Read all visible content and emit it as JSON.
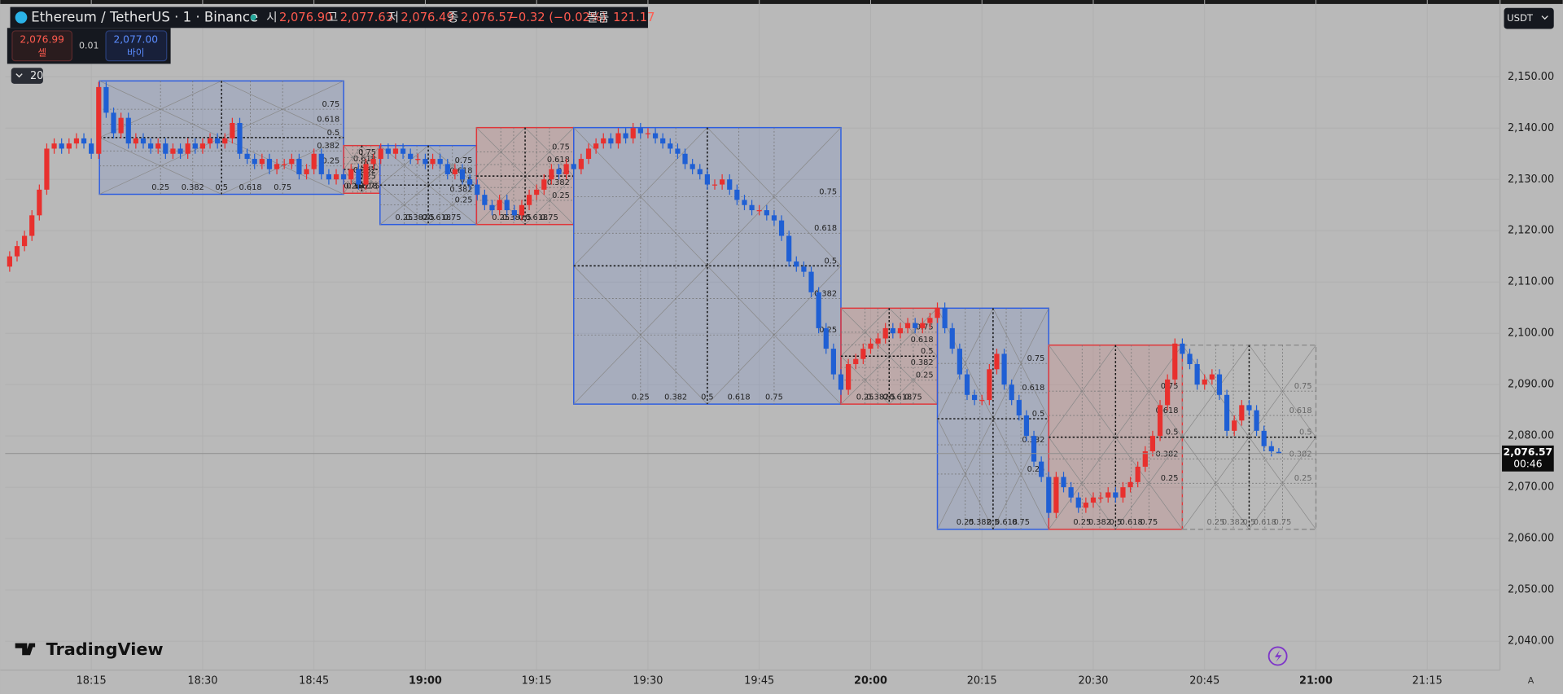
{
  "header": {
    "title": "Ethereum / TetherUS · 1 · Binance",
    "open_label": "시",
    "open": "2,076.90",
    "high_label": "고",
    "high": "2,077.63",
    "low_label": "저",
    "low": "2,076.49",
    "close_label": "종",
    "close": "2,076.57",
    "change": "−0.32 (−0.02%)",
    "volume_label": "볼륨",
    "volume": "121.17",
    "sell_price": "2,076.99",
    "sell": "셀",
    "spread": "0.01",
    "buy_price": "2,077.00",
    "buy": "바이",
    "indicator_count": "20",
    "currency": "USDT",
    "logo": "TradingView",
    "auto": "A"
  },
  "chart_data": {
    "type": "candlestick",
    "up_color": "#e8302e",
    "down_color": "#1f5fd4",
    "grid": true,
    "xlim": [
      -0.6,
      200.8
    ],
    "xticks": [
      {
        "value": 11,
        "label": "18:15"
      },
      {
        "value": 26,
        "label": "18:30"
      },
      {
        "value": 41,
        "label": "18:45"
      },
      {
        "value": 56,
        "label": "19:00"
      },
      {
        "value": 71,
        "label": "19:15"
      },
      {
        "value": 86,
        "label": "19:30"
      },
      {
        "value": 101,
        "label": "19:45"
      },
      {
        "value": 116,
        "label": "20:00"
      },
      {
        "value": 131,
        "label": "20:15"
      },
      {
        "value": 146,
        "label": "20:30"
      },
      {
        "value": 161,
        "label": "20:45"
      },
      {
        "value": 176,
        "label": "21:00"
      },
      {
        "value": 191,
        "label": "21:15"
      }
    ],
    "bold_xticks": [
      3,
      7,
      11
    ],
    "ylim": [
      2034.36,
      2164.97
    ],
    "yticks": [
      {
        "value": 2040,
        "label": "2,040.00"
      },
      {
        "value": 2050,
        "label": "2,050.00"
      },
      {
        "value": 2060,
        "label": "2,060.00"
      },
      {
        "value": 2070,
        "label": "2,070.00"
      },
      {
        "value": 2080,
        "label": "2,080.00"
      },
      {
        "value": 2090,
        "label": "2,090.00"
      },
      {
        "value": 2100,
        "label": "2,100.00"
      },
      {
        "value": 2110,
        "label": "2,110.00"
      },
      {
        "value": 2120,
        "label": "2,120.00"
      },
      {
        "value": 2130,
        "label": "2,130.00"
      },
      {
        "value": 2140,
        "label": "2,140.00"
      },
      {
        "value": 2150,
        "label": "2,150.00"
      }
    ],
    "open": [
      2113,
      2115,
      2117,
      2119,
      2123,
      2128,
      2136,
      2137,
      2136,
      2137,
      2138,
      2137,
      2135,
      2148,
      2143,
      2139,
      2142,
      2137,
      2138,
      2137,
      2136,
      2137,
      2135,
      2136,
      2135,
      2137,
      2136,
      2137,
      2138,
      2137,
      2138,
      2141,
      2135,
      2134,
      2133,
      2134,
      2132,
      2133,
      2133,
      2134,
      2131,
      2132,
      2135,
      2131,
      2130,
      2131,
      2130,
      2132,
      2129,
      2133,
      2134,
      2136,
      2135,
      2136,
      2135,
      2134,
      2134,
      2133,
      2134,
      2133,
      2131,
      2132,
      2130,
      2129,
      2127,
      2125,
      2124,
      2126,
      2124,
      2123,
      2125,
      2127,
      2128,
      2130,
      2132,
      2131,
      2133,
      2132,
      2134,
      2136,
      2137,
      2138,
      2137,
      2139,
      2138,
      2140,
      2139,
      2139,
      2138,
      2137,
      2136,
      2135,
      2133,
      2132,
      2131,
      2129,
      2129,
      2130,
      2128,
      2126,
      2125,
      2124,
      2124,
      2123,
      2122,
      2119,
      2114,
      2113,
      2112,
      2108,
      2101,
      2097,
      2092,
      2089,
      2094,
      2095,
      2097,
      2098,
      2099,
      2101,
      2100,
      2101,
      2102,
      2101,
      2102,
      2103,
      2105,
      2101,
      2097,
      2092,
      2088,
      2087,
      2087,
      2093,
      2096,
      2090,
      2087,
      2084,
      2080,
      2075,
      2072,
      2065,
      2072,
      2070,
      2068,
      2066,
      2067,
      2068,
      2068,
      2069,
      2068,
      2070,
      2071,
      2074,
      2077,
      2080,
      2086,
      2091,
      2098,
      2096,
      2094,
      2090,
      2091,
      2092,
      2088,
      2081,
      2083,
      2086,
      2085,
      2081,
      2078,
      2076.9
    ],
    "high": [
      2116,
      2118,
      2120,
      2124,
      2129,
      2137,
      2138,
      2138,
      2138,
      2139,
      2139,
      2138,
      2149,
      2149,
      2144,
      2143,
      2143,
      2139,
      2139,
      2138,
      2138,
      2138,
      2137,
      2137,
      2138,
      2138,
      2138,
      2139,
      2139,
      2139,
      2142,
      2142,
      2136,
      2135,
      2135,
      2135,
      2134,
      2134,
      2135,
      2135,
      2133,
      2136,
      2136,
      2132,
      2132,
      2132,
      2133,
      2133,
      2134,
      2135,
      2137,
      2137,
      2137,
      2137,
      2136,
      2135,
      2135,
      2135,
      2135,
      2134,
      2133,
      2133,
      2131,
      2130,
      2128,
      2126,
      2127,
      2127,
      2125,
      2126,
      2128,
      2129,
      2131,
      2133,
      2133,
      2134,
      2134,
      2135,
      2137,
      2138,
      2139,
      2139,
      2140,
      2140,
      2141,
      2141,
      2140,
      2140,
      2139,
      2138,
      2137,
      2136,
      2134,
      2133,
      2132,
      2130,
      2131,
      2131,
      2129,
      2127,
      2126,
      2125,
      2125,
      2124,
      2123,
      2120,
      2115,
      2114,
      2113,
      2109,
      2102,
      2098,
      2093,
      2095,
      2096,
      2098,
      2099,
      2100,
      2102,
      2102,
      2102,
      2103,
      2103,
      2103,
      2104,
      2106,
      2106,
      2102,
      2098,
      2093,
      2089,
      2088,
      2094,
      2097,
      2097,
      2091,
      2088,
      2085,
      2081,
      2076,
      2073,
      2073,
      2073,
      2071,
      2069,
      2068,
      2069,
      2069,
      2070,
      2070,
      2071,
      2072,
      2075,
      2078,
      2081,
      2087,
      2092,
      2099,
      2099,
      2097,
      2095,
      2092,
      2093,
      2093,
      2089,
      2084,
      2087,
      2087,
      2086,
      2082,
      2079,
      2077.63
    ],
    "low": [
      2112,
      2114,
      2116,
      2118,
      2122,
      2127,
      2135,
      2135,
      2135,
      2136,
      2136,
      2134,
      2134,
      2142,
      2138,
      2138,
      2136,
      2136,
      2136,
      2135,
      2135,
      2134,
      2134,
      2134,
      2134,
      2135,
      2135,
      2136,
      2136,
      2136,
      2137,
      2134,
      2133,
      2132,
      2132,
      2131,
      2131,
      2132,
      2132,
      2130,
      2130,
      2131,
      2130,
      2129,
      2129,
      2129,
      2129,
      2128,
      2128,
      2132,
      2133,
      2134,
      2134,
      2134,
      2133,
      2133,
      2132,
      2132,
      2132,
      2130,
      2130,
      2129,
      2128,
      2126,
      2124,
      2123,
      2123,
      2123,
      2122,
      2122,
      2124,
      2126,
      2127,
      2129,
      2130,
      2130,
      2131,
      2131,
      2133,
      2135,
      2136,
      2136,
      2136,
      2137,
      2137,
      2138,
      2138,
      2137,
      2136,
      2135,
      2134,
      2132,
      2131,
      2130,
      2128,
      2128,
      2128,
      2127,
      2125,
      2124,
      2123,
      2123,
      2122,
      2121,
      2118,
      2113,
      2112,
      2111,
      2107,
      2100,
      2096,
      2091,
      2088,
      2088,
      2093,
      2094,
      2096,
      2097,
      2098,
      2099,
      2099,
      2100,
      2100,
      2100,
      2101,
      2102,
      2100,
      2096,
      2091,
      2087,
      2086,
      2086,
      2086,
      2092,
      2089,
      2086,
      2083,
      2079,
      2074,
      2071,
      2064,
      2064,
      2069,
      2067,
      2065,
      2065,
      2066,
      2067,
      2067,
      2067,
      2067,
      2069,
      2070,
      2073,
      2076,
      2079,
      2085,
      2090,
      2095,
      2093,
      2089,
      2089,
      2090,
      2087,
      2080,
      2080,
      2082,
      2084,
      2080,
      2077,
      2076,
      2076.49
    ],
    "close": [
      2115,
      2117,
      2119,
      2123,
      2128,
      2136,
      2137,
      2136,
      2137,
      2138,
      2137,
      2135,
      2148,
      2143,
      2139,
      2142,
      2137,
      2138,
      2137,
      2136,
      2137,
      2135,
      2136,
      2135,
      2137,
      2136,
      2137,
      2138,
      2137,
      2138,
      2141,
      2135,
      2134,
      2133,
      2134,
      2132,
      2133,
      2133,
      2134,
      2131,
      2132,
      2135,
      2131,
      2130,
      2131,
      2130,
      2132,
      2129,
      2133,
      2134,
      2136,
      2135,
      2136,
      2135,
      2134,
      2134,
      2133,
      2134,
      2133,
      2131,
      2132,
      2130,
      2129,
      2127,
      2125,
      2124,
      2126,
      2124,
      2123,
      2125,
      2127,
      2128,
      2130,
      2132,
      2131,
      2133,
      2132,
      2134,
      2136,
      2137,
      2138,
      2137,
      2139,
      2138,
      2140,
      2139,
      2139,
      2138,
      2137,
      2136,
      2135,
      2133,
      2132,
      2131,
      2129,
      2129,
      2130,
      2128,
      2126,
      2125,
      2124,
      2124,
      2123,
      2122,
      2119,
      2114,
      2113,
      2112,
      2108,
      2101,
      2097,
      2092,
      2089,
      2094,
      2095,
      2097,
      2098,
      2099,
      2101,
      2100,
      2101,
      2102,
      2101,
      2102,
      2103,
      2105,
      2101,
      2097,
      2092,
      2088,
      2087,
      2087,
      2093,
      2096,
      2090,
      2087,
      2084,
      2080,
      2075,
      2072,
      2065,
      2072,
      2070,
      2068,
      2066,
      2067,
      2068,
      2068,
      2069,
      2068,
      2070,
      2071,
      2074,
      2077,
      2080,
      2086,
      2091,
      2098,
      2096,
      2094,
      2090,
      2091,
      2092,
      2088,
      2081,
      2083,
      2086,
      2085,
      2081,
      2078,
      2077,
      2076.57
    ],
    "last_label": "2,076.57",
    "countdown": "00:46",
    "fib_levels": [
      0.25,
      0.382,
      0.5,
      0.618,
      0.75
    ],
    "fib_boxes": [
      {
        "start": 12.1,
        "end": 45,
        "top": 2149.2,
        "bottom": 2127.1,
        "color": "#2d5de0"
      },
      {
        "start": 45,
        "end": 49.9,
        "top": 2136.6,
        "bottom": 2127.3,
        "color": "#e0363a"
      },
      {
        "start": 49.9,
        "end": 62.9,
        "top": 2136.6,
        "bottom": 2121.2,
        "color": "#2d5de0"
      },
      {
        "start": 62.9,
        "end": 76,
        "top": 2140.1,
        "bottom": 2121.2,
        "color": "#e0363a"
      },
      {
        "start": 76,
        "end": 112,
        "top": 2140.1,
        "bottom": 2086.2,
        "color": "#2d5de0"
      },
      {
        "start": 112,
        "end": 125,
        "top": 2104.9,
        "bottom": 2086.2,
        "color": "#e0363a"
      },
      {
        "start": 125,
        "end": 140,
        "top": 2104.9,
        "bottom": 2061.8,
        "color": "#2d5de0"
      },
      {
        "start": 140,
        "end": 158,
        "top": 2097.7,
        "bottom": 2061.8,
        "color": "#e0363a"
      },
      {
        "start": 158,
        "end": 176,
        "top": 2097.7,
        "bottom": 2061.8,
        "color": "#8c8c8c",
        "dashed": true
      }
    ]
  }
}
